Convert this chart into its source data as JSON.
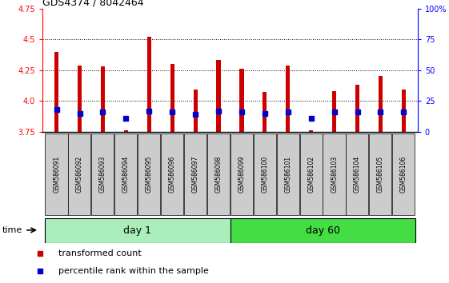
{
  "title": "GDS4374 / 8042464",
  "samples": [
    "GSM586091",
    "GSM586092",
    "GSM586093",
    "GSM586094",
    "GSM586095",
    "GSM586096",
    "GSM586097",
    "GSM586098",
    "GSM586099",
    "GSM586100",
    "GSM586101",
    "GSM586102",
    "GSM586103",
    "GSM586104",
    "GSM586105",
    "GSM586106"
  ],
  "red_values": [
    4.4,
    4.29,
    4.28,
    3.76,
    4.52,
    4.3,
    4.09,
    4.33,
    4.26,
    4.07,
    4.29,
    3.76,
    4.08,
    4.13,
    4.2,
    4.09
  ],
  "blue_values": [
    3.93,
    3.9,
    3.91,
    3.86,
    3.92,
    3.91,
    3.89,
    3.92,
    3.91,
    3.9,
    3.91,
    3.86,
    3.91,
    3.91,
    3.91,
    3.91
  ],
  "ymin": 3.75,
  "ymax": 4.75,
  "yticks_left": [
    3.75,
    4.0,
    4.25,
    4.5,
    4.75
  ],
  "yticks_right": [
    0,
    25,
    50,
    75,
    100
  ],
  "day1_count": 8,
  "day60_count": 8,
  "day1_label": "day 1",
  "day60_label": "day 60",
  "time_label": "time",
  "legend1": "transformed count",
  "legend2": "percentile rank within the sample",
  "bar_color": "#cc0000",
  "dot_color": "#0000cc",
  "bar_width": 0.18,
  "background_color": "#ffffff",
  "tick_label_bg": "#cccccc",
  "day1_bg": "#aaeebb",
  "day60_bg": "#44dd44",
  "base_value": 3.75,
  "grid_yticks": [
    4.0,
    4.25,
    4.5
  ]
}
